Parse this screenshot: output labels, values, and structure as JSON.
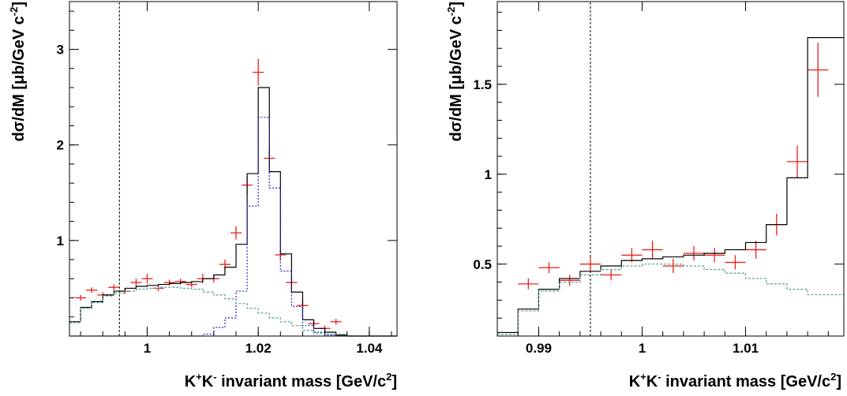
{
  "chart_data": [
    {
      "type": "line",
      "xlabel": "K⁺K⁻ invariant mass [GeV/c²]",
      "xlabel_parts": {
        "k1": "K",
        "sup1": "+",
        "k2": "K",
        "sup2": "-",
        "middle": " invariant mass [GeV/c",
        "sup3": "2",
        "end": "]"
      },
      "ylabel": "dσ/dM [μb/GeV c⁻²]",
      "ylabel_parts": {
        "main": "dσ/dM [μb/GeV c",
        "sup": "-2",
        "end": "]"
      },
      "xlim": [
        0.986,
        1.045
      ],
      "ylim": [
        0.0,
        3.5
      ],
      "x_ticks": [
        1.0,
        1.02,
        1.04
      ],
      "x_tick_labels": [
        "1",
        "1.02",
        "1.04"
      ],
      "y_ticks": [
        1,
        2,
        3
      ],
      "y_tick_labels": [
        "1",
        "2",
        "3"
      ],
      "vline": 0.995,
      "grid": false,
      "series": [
        {
          "style": "data",
          "color": "#e8201c",
          "x": [
            0.988,
            0.99,
            0.992,
            0.994,
            0.996,
            0.998,
            1.0,
            1.002,
            1.004,
            1.006,
            1.008,
            1.01,
            1.012,
            1.014,
            1.016,
            1.018,
            1.02,
            1.022,
            1.024,
            1.026,
            1.028,
            1.03,
            1.032,
            1.034
          ],
          "y": [
            0.4,
            0.48,
            0.43,
            0.51,
            0.47,
            0.56,
            0.6,
            0.5,
            0.56,
            0.57,
            0.54,
            0.6,
            0.6,
            0.75,
            1.08,
            1.58,
            2.76,
            1.86,
            0.85,
            0.56,
            0.32,
            0.13,
            0.08,
            0.15
          ],
          "xerr": 0.001,
          "yerr": [
            0.03,
            0.03,
            0.03,
            0.03,
            0.03,
            0.04,
            0.05,
            0.03,
            0.03,
            0.03,
            0.03,
            0.05,
            0.04,
            0.05,
            0.07,
            0.1,
            0.14,
            0.1,
            0.06,
            0.05,
            0.05,
            0.03,
            0.03,
            0.03
          ]
        },
        {
          "style": "step",
          "color": "#000000",
          "x": [
            0.986,
            0.988,
            0.99,
            0.992,
            0.994,
            0.996,
            0.998,
            1.0,
            1.002,
            1.004,
            1.006,
            1.008,
            1.01,
            1.012,
            1.014,
            1.016,
            1.018,
            1.02,
            1.022,
            1.024,
            1.026,
            1.028,
            1.03,
            1.032,
            1.034,
            1.036,
            1.045
          ],
          "y": [
            0.15,
            0.3,
            0.36,
            0.43,
            0.47,
            0.5,
            0.52,
            0.53,
            0.54,
            0.55,
            0.56,
            0.57,
            0.6,
            0.64,
            0.72,
            0.96,
            1.7,
            2.6,
            1.72,
            0.86,
            0.46,
            0.17,
            0.08,
            0.04,
            0.01,
            0.0,
            0.0
          ]
        },
        {
          "style": "step",
          "color": "#2222cc",
          "dash": "2,2",
          "x": [
            0.986,
            1.01,
            1.012,
            1.014,
            1.016,
            1.018,
            1.02,
            1.022,
            1.024,
            1.026,
            1.028,
            1.03,
            1.032,
            1.034,
            1.045
          ],
          "y": [
            0.0,
            0.02,
            0.09,
            0.19,
            0.47,
            1.36,
            2.29,
            1.55,
            0.68,
            0.31,
            0.11,
            0.04,
            0.01,
            0.0,
            0.0
          ]
        },
        {
          "style": "step",
          "color": "#55a090",
          "dash": "3,2",
          "x": [
            0.986,
            0.988,
            0.99,
            0.992,
            0.994,
            0.996,
            0.998,
            1.0,
            1.002,
            1.004,
            1.006,
            1.008,
            1.01,
            1.012,
            1.014,
            1.016,
            1.018,
            1.02,
            1.022,
            1.024,
            1.026,
            1.028,
            1.03,
            1.032,
            1.034,
            1.036,
            1.045
          ],
          "y": [
            0.14,
            0.29,
            0.35,
            0.42,
            0.45,
            0.47,
            0.49,
            0.5,
            0.51,
            0.51,
            0.5,
            0.49,
            0.46,
            0.43,
            0.39,
            0.34,
            0.29,
            0.24,
            0.19,
            0.15,
            0.11,
            0.06,
            0.03,
            0.02,
            0.02,
            0.0,
            0.0
          ]
        }
      ]
    },
    {
      "type": "line",
      "xlabel": "K⁺K⁻ invariant mass [GeV/c²]",
      "xlabel_parts": {
        "k1": "K",
        "sup1": "+",
        "k2": "K",
        "sup2": "-",
        "middle": " invariant mass [GeV/c",
        "sup3": "2",
        "end": "]"
      },
      "ylabel": "dσ/dM [μb/GeV c⁻²]",
      "ylabel_parts": {
        "main": "dσ/dM [μb/GeV c",
        "sup": "-2",
        "end": "]"
      },
      "xlim": [
        0.986,
        1.0195
      ],
      "ylim": [
        0.1,
        1.96
      ],
      "x_ticks": [
        0.99,
        1.0,
        1.01
      ],
      "x_tick_labels": [
        "0.99",
        "1",
        "1.01"
      ],
      "y_ticks": [
        0.5,
        1.0,
        1.5
      ],
      "y_tick_labels": [
        "0.5",
        "1",
        "1.5"
      ],
      "vline": 0.995,
      "grid": false,
      "series": [
        {
          "style": "data",
          "color": "#e8201c",
          "x": [
            0.989,
            0.991,
            0.993,
            0.995,
            0.997,
            0.999,
            1.001,
            1.003,
            1.005,
            1.007,
            1.009,
            1.011,
            1.013,
            1.015,
            1.017
          ],
          "y": [
            0.39,
            0.48,
            0.41,
            0.5,
            0.44,
            0.55,
            0.58,
            0.49,
            0.56,
            0.55,
            0.51,
            0.58,
            0.72,
            1.07,
            1.58
          ],
          "xerr": 0.001,
          "yerr": [
            0.03,
            0.03,
            0.03,
            0.04,
            0.03,
            0.04,
            0.05,
            0.04,
            0.04,
            0.04,
            0.04,
            0.05,
            0.06,
            0.09,
            0.15
          ]
        },
        {
          "style": "step",
          "color": "#000000",
          "x": [
            0.986,
            0.988,
            0.99,
            0.992,
            0.994,
            0.996,
            0.998,
            1.0,
            1.002,
            1.004,
            1.006,
            1.008,
            1.01,
            1.012,
            1.014,
            1.016,
            1.0195
          ],
          "y": [
            0.12,
            0.25,
            0.36,
            0.42,
            0.46,
            0.49,
            0.52,
            0.53,
            0.54,
            0.55,
            0.56,
            0.58,
            0.62,
            0.72,
            0.98,
            1.76,
            1.76
          ]
        },
        {
          "style": "step",
          "color": "#55a090",
          "dash": "3,2",
          "x": [
            0.986,
            0.988,
            0.99,
            0.992,
            0.994,
            0.996,
            0.998,
            1.0,
            1.002,
            1.004,
            1.006,
            1.008,
            1.01,
            1.012,
            1.014,
            1.016,
            1.0195
          ],
          "y": [
            0.11,
            0.24,
            0.35,
            0.4,
            0.44,
            0.47,
            0.49,
            0.5,
            0.5,
            0.49,
            0.47,
            0.45,
            0.42,
            0.39,
            0.36,
            0.33,
            0.33
          ]
        }
      ]
    }
  ]
}
